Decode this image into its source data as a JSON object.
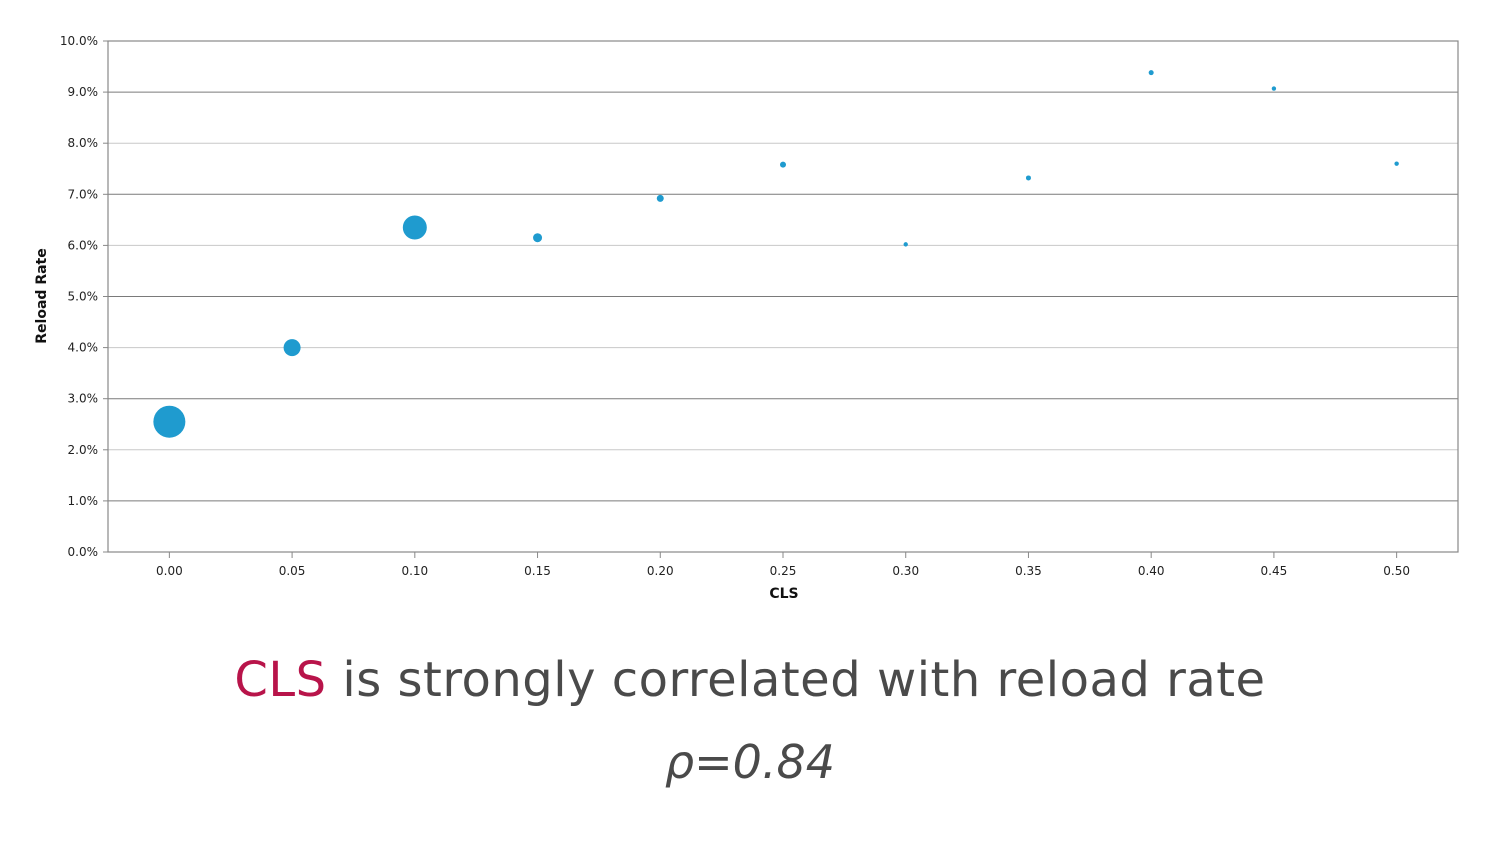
{
  "chart_data": {
    "type": "scatter",
    "xlabel": "CLS",
    "ylabel": "Reload Rate",
    "xlim": [
      -0.025,
      0.525
    ],
    "ylim": [
      0,
      10
    ],
    "x_ticks": [
      "0.00",
      "0.05",
      "0.10",
      "0.15",
      "0.20",
      "0.25",
      "0.30",
      "0.35",
      "0.40",
      "0.45",
      "0.50"
    ],
    "x_tick_values": [
      0,
      0.05,
      0.1,
      0.15,
      0.2,
      0.25,
      0.3,
      0.35,
      0.4,
      0.45,
      0.5
    ],
    "y_ticks": [
      "0.0%",
      "1.0%",
      "2.0%",
      "3.0%",
      "4.0%",
      "5.0%",
      "6.0%",
      "7.0%",
      "8.0%",
      "9.0%",
      "10.0%"
    ],
    "y_tick_values": [
      0,
      1,
      2,
      3,
      4,
      5,
      6,
      7,
      8,
      9,
      10
    ],
    "grid": true,
    "color": "#1f9bcf",
    "points": [
      {
        "x": 0.0,
        "y": 2.55,
        "size": 16
      },
      {
        "x": 0.05,
        "y": 4.0,
        "size": 8.5
      },
      {
        "x": 0.1,
        "y": 6.35,
        "size": 12
      },
      {
        "x": 0.15,
        "y": 6.15,
        "size": 4.5
      },
      {
        "x": 0.2,
        "y": 6.92,
        "size": 3.5
      },
      {
        "x": 0.25,
        "y": 7.58,
        "size": 3
      },
      {
        "x": 0.3,
        "y": 6.02,
        "size": 2.2
      },
      {
        "x": 0.35,
        "y": 7.32,
        "size": 2.5
      },
      {
        "x": 0.4,
        "y": 9.38,
        "size": 2.5
      },
      {
        "x": 0.45,
        "y": 9.07,
        "size": 2.2
      },
      {
        "x": 0.5,
        "y": 7.6,
        "size": 2.2
      }
    ]
  },
  "headline": {
    "accent": "CLS",
    "rest": " is strongly correlated with reload rate"
  },
  "stat": "ρ=0.84"
}
